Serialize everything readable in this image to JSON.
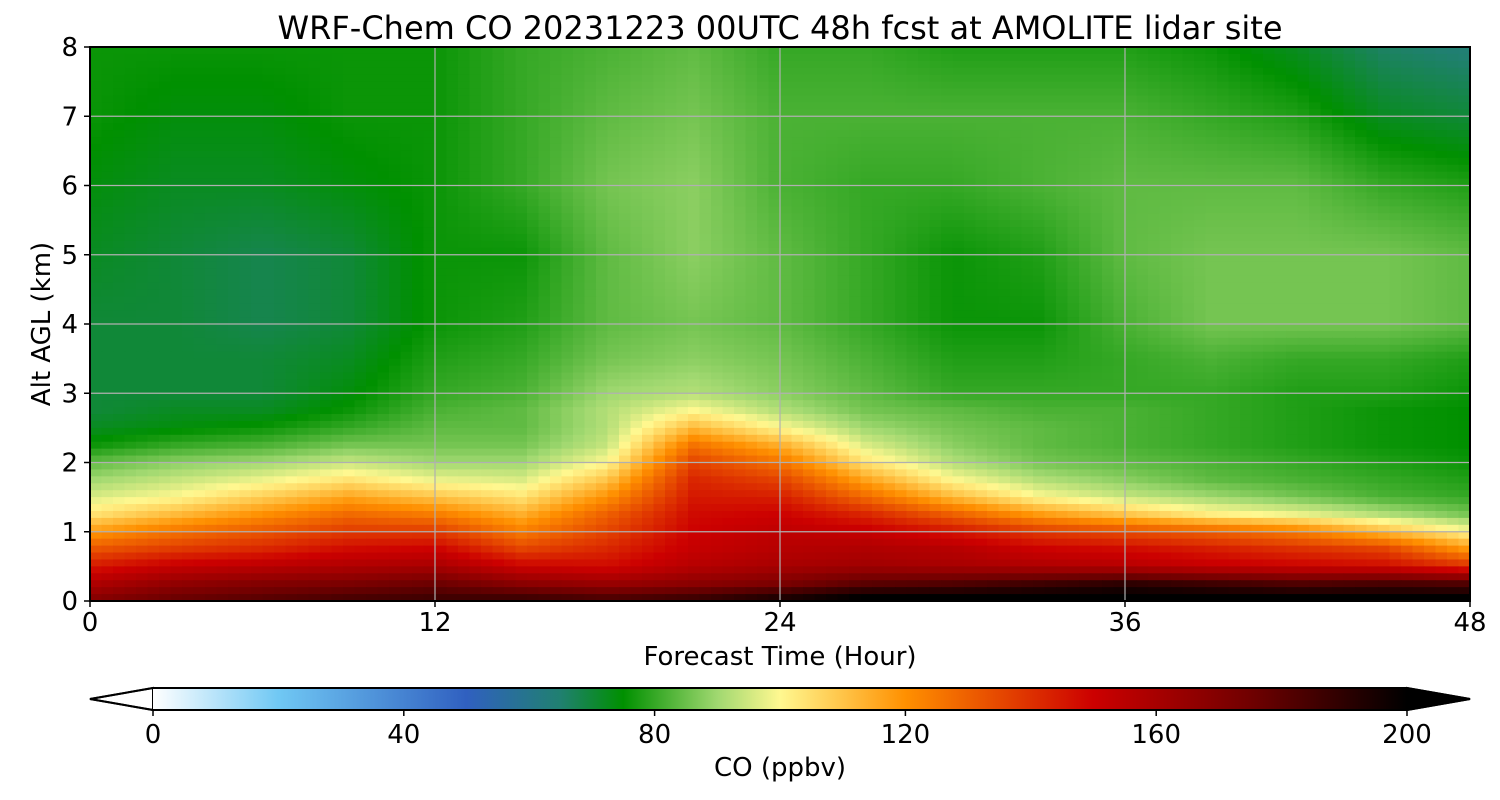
{
  "chart_data": {
    "type": "heatmap",
    "title": "WRF-Chem CO  20231223 00UTC 48h fcst at AMOLITE lidar site",
    "xlabel": "Forecast Time (Hour)",
    "ylabel": "Alt AGL (km)",
    "xlim": [
      0,
      48
    ],
    "ylim": [
      0,
      8
    ],
    "x_ticks": [
      0,
      12,
      24,
      36,
      48
    ],
    "y_ticks": [
      0,
      1,
      2,
      3,
      4,
      5,
      6,
      7,
      8
    ],
    "grid": true,
    "colorbar": {
      "label": "CO  (ppbv)",
      "min": 0,
      "max": 200,
      "ticks": [
        0,
        40,
        80,
        120,
        160,
        200
      ],
      "extend": "both",
      "under_color": "#ffffff",
      "over_color": "#000000",
      "stops": [
        {
          "value": 0,
          "color": "#ffffff"
        },
        {
          "value": 20,
          "color": "#70c8f4"
        },
        {
          "value": 50,
          "color": "#3060c0"
        },
        {
          "value": 65,
          "color": "#208070"
        },
        {
          "value": 75,
          "color": "#009000"
        },
        {
          "value": 90,
          "color": "#a0d870"
        },
        {
          "value": 100,
          "color": "#fff890"
        },
        {
          "value": 120,
          "color": "#ff9000"
        },
        {
          "value": 150,
          "color": "#cc0000"
        },
        {
          "value": 175,
          "color": "#700000"
        },
        {
          "value": 200,
          "color": "#000000"
        }
      ]
    },
    "x": [
      0,
      3,
      6,
      9,
      12,
      15,
      18,
      21,
      24,
      27,
      30,
      33,
      36,
      39,
      42,
      45,
      48
    ],
    "y": [
      0,
      0.25,
      0.5,
      0.75,
      1,
      1.25,
      1.5,
      1.75,
      2,
      2.25,
      2.5,
      2.75,
      3,
      3.5,
      4,
      5,
      6,
      7,
      8
    ],
    "z": [
      [
        170,
        178,
        182,
        186,
        188,
        190,
        186,
        190,
        198,
        205,
        205,
        205,
        205,
        205,
        205,
        205,
        205
      ],
      [
        158,
        166,
        170,
        172,
        176,
        168,
        164,
        168,
        172,
        180,
        182,
        186,
        190,
        186,
        182,
        184,
        182
      ],
      [
        145,
        152,
        155,
        158,
        160,
        150,
        148,
        156,
        160,
        162,
        160,
        158,
        156,
        152,
        150,
        148,
        140
      ],
      [
        132,
        138,
        142,
        148,
        150,
        136,
        142,
        152,
        156,
        158,
        156,
        150,
        148,
        144,
        140,
        136,
        118
      ],
      [
        118,
        126,
        132,
        138,
        138,
        124,
        136,
        150,
        154,
        152,
        146,
        138,
        134,
        130,
        124,
        112,
        100
      ],
      [
        104,
        112,
        120,
        128,
        124,
        114,
        130,
        148,
        150,
        142,
        130,
        118,
        110,
        102,
        98,
        92,
        86
      ],
      [
        96,
        100,
        108,
        116,
        110,
        104,
        120,
        145,
        144,
        128,
        112,
        100,
        94,
        90,
        86,
        82,
        80
      ],
      [
        90,
        94,
        98,
        104,
        98,
        96,
        110,
        142,
        136,
        116,
        100,
        92,
        88,
        84,
        82,
        80,
        78
      ],
      [
        84,
        88,
        90,
        94,
        90,
        90,
        100,
        136,
        126,
        104,
        92,
        86,
        84,
        82,
        80,
        78,
        76
      ],
      [
        76,
        80,
        82,
        86,
        86,
        86,
        94,
        126,
        114,
        96,
        88,
        84,
        82,
        80,
        78,
        76,
        75
      ],
      [
        72,
        74,
        76,
        80,
        84,
        84,
        92,
        112,
        100,
        90,
        86,
        84,
        82,
        80,
        78,
        76,
        75
      ],
      [
        70,
        72,
        72,
        76,
        82,
        84,
        92,
        100,
        92,
        86,
        84,
        82,
        82,
        80,
        78,
        76,
        75
      ],
      [
        70,
        70,
        70,
        74,
        80,
        82,
        90,
        92,
        88,
        84,
        80,
        80,
        80,
        80,
        78,
        78,
        76
      ],
      [
        70,
        70,
        70,
        72,
        78,
        80,
        86,
        88,
        86,
        82,
        78,
        78,
        80,
        82,
        80,
        80,
        78
      ],
      [
        70,
        70,
        68,
        70,
        76,
        78,
        84,
        86,
        84,
        80,
        76,
        76,
        82,
        86,
        86,
        86,
        84
      ],
      [
        72,
        70,
        68,
        70,
        76,
        76,
        84,
        88,
        84,
        80,
        76,
        78,
        84,
        86,
        86,
        86,
        84
      ],
      [
        74,
        72,
        72,
        74,
        76,
        80,
        86,
        88,
        82,
        80,
        80,
        82,
        84,
        84,
        84,
        80,
        78
      ],
      [
        76,
        74,
        74,
        76,
        76,
        80,
        84,
        86,
        82,
        82,
        82,
        82,
        82,
        80,
        78,
        72,
        70
      ],
      [
        76,
        76,
        76,
        76,
        76,
        80,
        82,
        84,
        80,
        80,
        78,
        78,
        78,
        76,
        72,
        66,
        64
      ]
    ]
  }
}
